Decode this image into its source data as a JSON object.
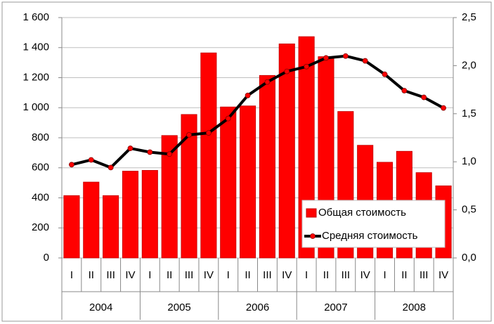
{
  "chart_data": {
    "type": "bar",
    "categories": [
      "I",
      "II",
      "III",
      "IV",
      "I",
      "II",
      "III",
      "IV",
      "I",
      "II",
      "III",
      "IV",
      "I",
      "II",
      "III",
      "IV",
      "I",
      "II",
      "III",
      "IV"
    ],
    "group_labels": [
      "2004",
      "2005",
      "2006",
      "2007",
      "2008"
    ],
    "series": [
      {
        "name": "Общая стоимость",
        "type": "bar",
        "color": "#ff0000",
        "values": [
          415,
          505,
          415,
          578,
          583,
          815,
          955,
          1365,
          1005,
          1012,
          1215,
          1425,
          1473,
          1340,
          975,
          750,
          637,
          710,
          568,
          480
        ]
      },
      {
        "name": "Средняя стоимость",
        "type": "line",
        "color": "#000000",
        "marker_color": "#ff0000",
        "axis": "y2",
        "values": [
          0.97,
          1.02,
          0.94,
          1.14,
          1.1,
          1.08,
          1.28,
          1.3,
          1.45,
          1.69,
          1.83,
          1.94,
          1.99,
          2.08,
          2.1,
          2.05,
          1.91,
          1.74,
          1.67,
          1.56
        ]
      }
    ],
    "ylim": [
      0,
      1600
    ],
    "yticks": [
      0,
      200,
      400,
      600,
      800,
      {
        "value": 1000,
        "label": "1 000"
      },
      {
        "value": 1200,
        "label": "1 200"
      },
      {
        "value": 1400,
        "label": "1 400"
      },
      {
        "value": 1600,
        "label": "1 600"
      }
    ],
    "y2lim": [
      0,
      2.5
    ],
    "y2ticks": [
      {
        "value": 0,
        "label": "0,0"
      },
      {
        "value": 0.5,
        "label": "0,5"
      },
      {
        "value": 1,
        "label": "1,0"
      },
      {
        "value": 1.5,
        "label": "1,5"
      },
      {
        "value": 2,
        "label": "2,0"
      },
      {
        "value": 2.5,
        "label": "2,5"
      }
    ],
    "grid": true,
    "legend": "lower right"
  }
}
